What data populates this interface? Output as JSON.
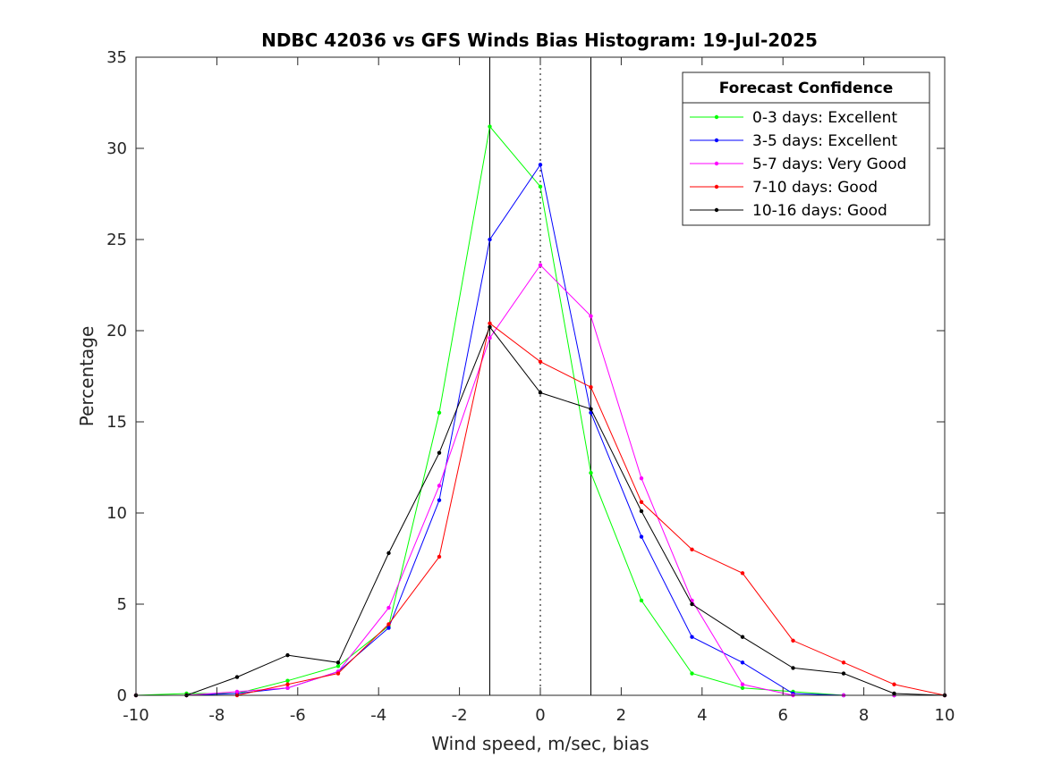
{
  "chart_data": {
    "type": "line",
    "title": "NDBC 42036 vs GFS Winds Bias Histogram: 19-Jul-2025",
    "xlabel": "Wind speed, m/sec, bias",
    "ylabel": "Percentage",
    "xlim": [
      -10,
      10
    ],
    "ylim": [
      0,
      35
    ],
    "xticks": [
      -10,
      -8,
      -6,
      -4,
      -2,
      0,
      2,
      4,
      6,
      8,
      10
    ],
    "yticks": [
      0,
      5,
      10,
      15,
      20,
      25,
      30,
      35
    ],
    "grid": false,
    "legend": {
      "title": "Forecast Confidence",
      "placement": "top-right"
    },
    "reference_lines": {
      "solid": [
        -1.25,
        1.25
      ],
      "dotted": [
        0
      ]
    },
    "x": [
      -10,
      -8.75,
      -7.5,
      -6.25,
      -5,
      -3.75,
      -2.5,
      -1.25,
      0,
      1.25,
      2.5,
      3.75,
      5,
      6.25,
      7.5,
      8.75,
      10
    ],
    "series": [
      {
        "name": "0-3 days: Excellent",
        "color": "#00ff00",
        "values": [
          0,
          0.1,
          0.1,
          0.8,
          1.6,
          3.8,
          15.5,
          31.2,
          27.9,
          12.2,
          5.2,
          1.2,
          0.4,
          0.2,
          0,
          0,
          0
        ]
      },
      {
        "name": "3-5 days: Excellent",
        "color": "#0000ff",
        "values": [
          0,
          0,
          0.1,
          0.4,
          1.3,
          3.7,
          10.7,
          25.0,
          29.1,
          15.5,
          8.7,
          3.2,
          1.8,
          0.1,
          0,
          0,
          0
        ]
      },
      {
        "name": "5-7 days: Very Good",
        "color": "#ff00ff",
        "values": [
          0,
          0,
          0.2,
          0.4,
          1.3,
          4.8,
          11.5,
          19.6,
          23.6,
          20.8,
          11.9,
          5.2,
          0.6,
          0,
          0,
          0,
          0
        ]
      },
      {
        "name": "7-10 days: Good",
        "color": "#ff0000",
        "values": [
          0,
          0,
          0,
          0.6,
          1.2,
          3.9,
          7.6,
          20.4,
          18.3,
          16.9,
          10.6,
          8.0,
          6.7,
          3.0,
          1.8,
          0.6,
          0
        ]
      },
      {
        "name": "10-16 days: Good",
        "color": "#000000",
        "values": [
          0,
          0,
          1.0,
          2.2,
          1.8,
          7.8,
          13.3,
          20.2,
          16.6,
          15.7,
          10.1,
          5.0,
          3.2,
          1.5,
          1.2,
          0.1,
          0
        ]
      }
    ]
  }
}
